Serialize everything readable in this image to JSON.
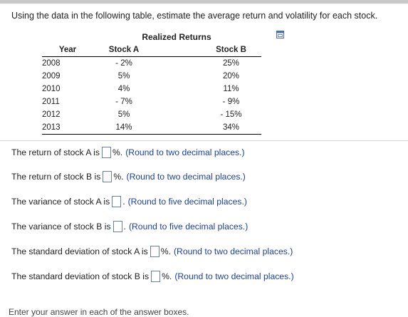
{
  "question": "Using the data in the following table, estimate the average return and volatility for each stock.",
  "table": {
    "caption": "Realized Returns",
    "headers": {
      "year": "Year",
      "stock_a": "Stock A",
      "stock_b": "Stock B"
    },
    "rows": [
      {
        "year": "2008",
        "a": "- 2%",
        "b": "25%"
      },
      {
        "year": "2009",
        "a": "5%",
        "b": "20%"
      },
      {
        "year": "2010",
        "a": "4%",
        "b": "11%"
      },
      {
        "year": "2011",
        "a": "- 7%",
        "b": "- 9%"
      },
      {
        "year": "2012",
        "a": "5%",
        "b": "- 15%"
      },
      {
        "year": "2013",
        "a": "14%",
        "b": "34%"
      }
    ]
  },
  "answers": [
    {
      "label": "The return of stock A is",
      "value": "",
      "suffix": "%.",
      "hint": "(Round to two decimal places.)"
    },
    {
      "label": "The return of stock B is",
      "value": "",
      "suffix": "%.",
      "hint": "(Round to two decimal places.)"
    },
    {
      "label": "The variance of stock A is",
      "value": "",
      "suffix": ".",
      "hint": "(Round to five decimal places.)"
    },
    {
      "label": "The variance of stock B is",
      "value": "",
      "suffix": ".",
      "hint": "(Round to five decimal places.)"
    },
    {
      "label": "The standard deviation of stock A is",
      "value": "",
      "suffix": "%.",
      "hint": "(Round to two decimal places.)"
    },
    {
      "label": "The standard deviation of stock B is",
      "value": "",
      "suffix": "%.",
      "hint": "(Round to two decimal places.)"
    }
  ],
  "footer": "Enter your answer in each of the answer boxes.",
  "colors": {
    "hint": "#1b3fa6",
    "input_border": "#6a7fa8",
    "separator": "#d6d6d6"
  },
  "icons": {
    "copy": "copy-to-clipboard-icon"
  }
}
